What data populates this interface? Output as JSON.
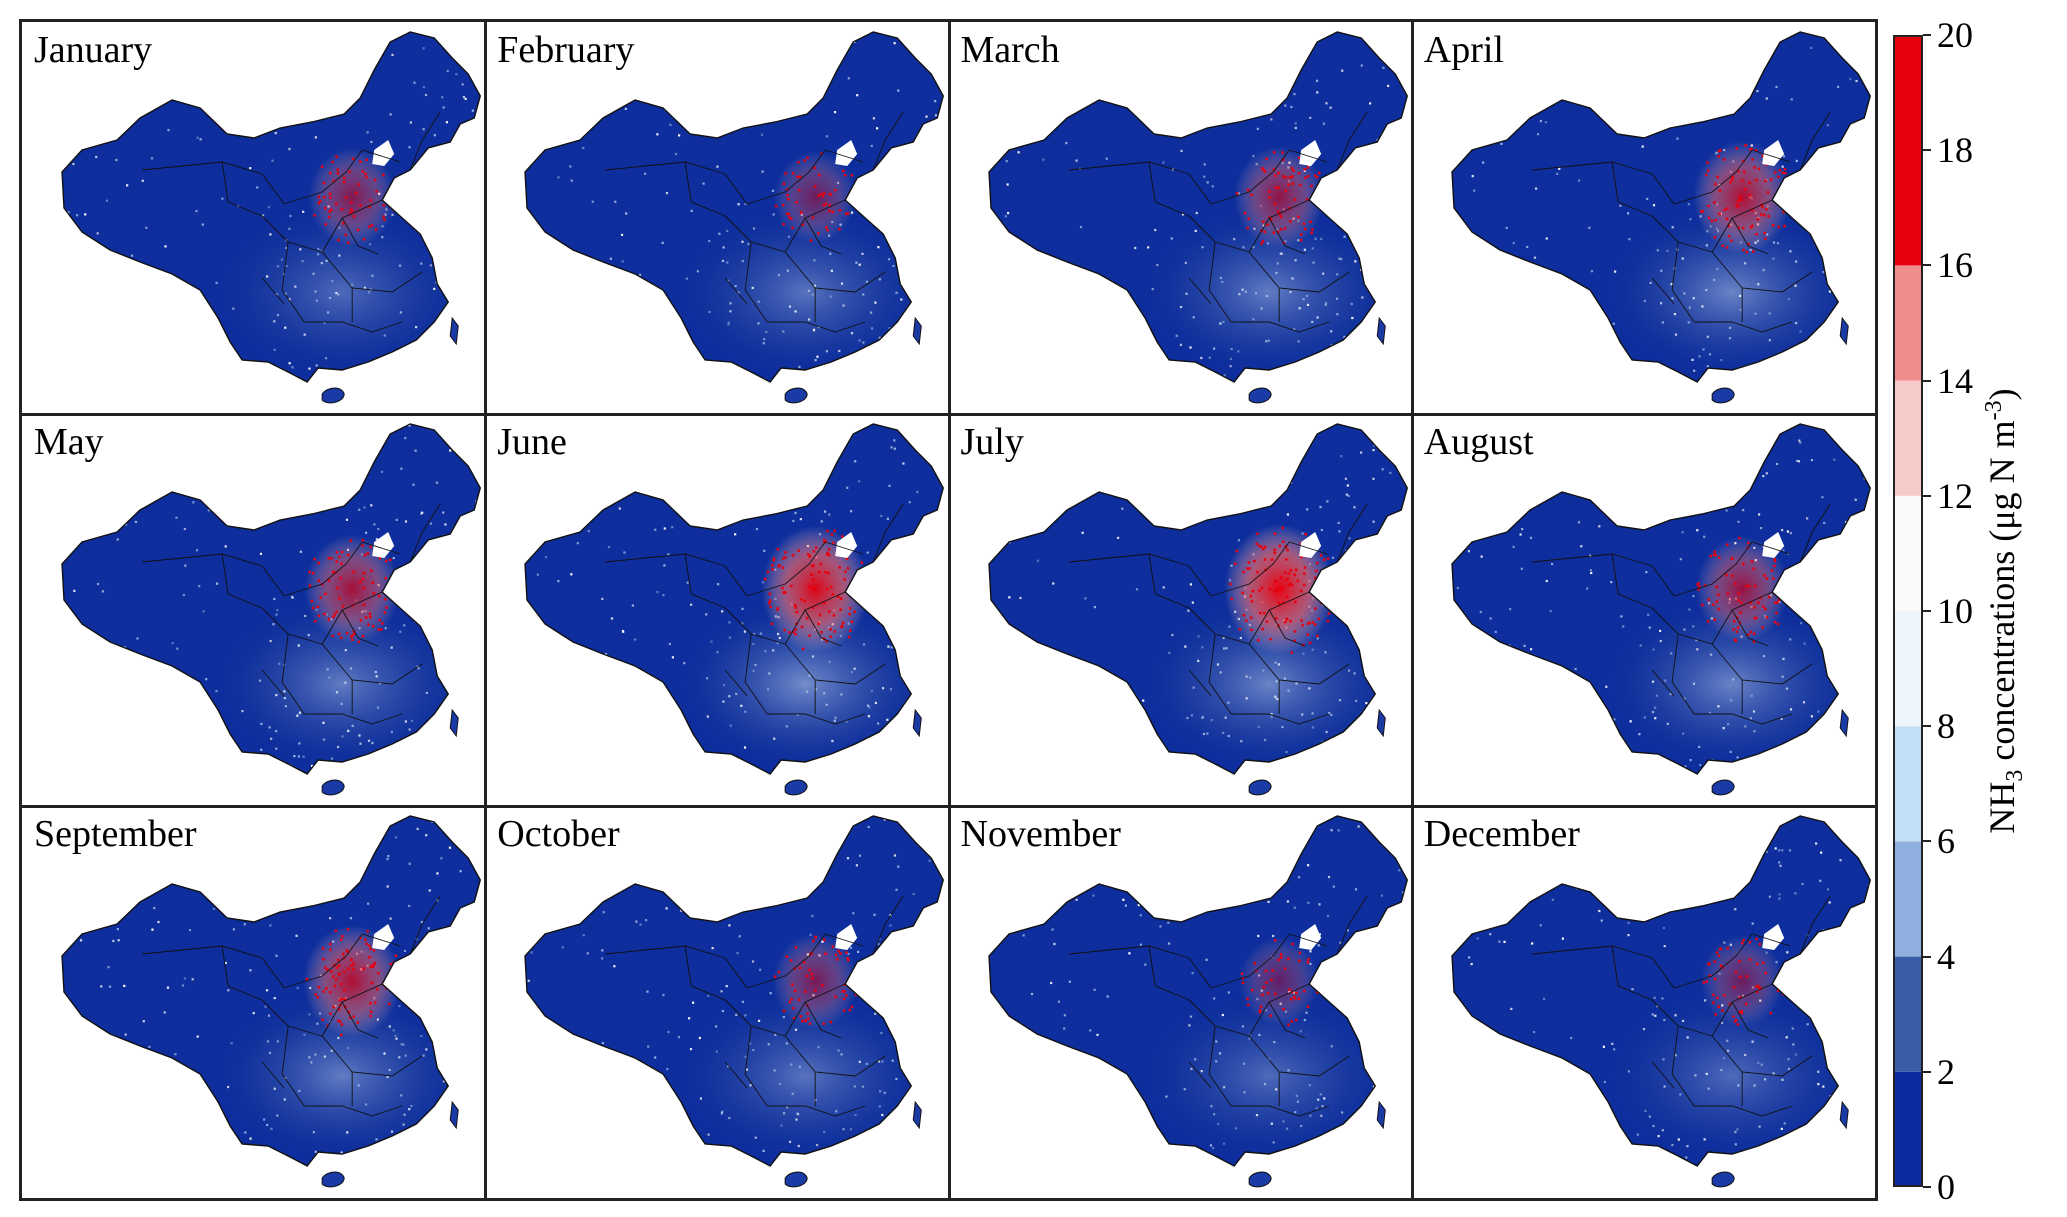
{
  "figure": {
    "panels": [
      {
        "month": "January",
        "hotspot": 0.55,
        "south": 0.35
      },
      {
        "month": "February",
        "hotspot": 0.45,
        "south": 0.4
      },
      {
        "month": "March",
        "hotspot": 0.6,
        "south": 0.45
      },
      {
        "month": "April",
        "hotspot": 0.75,
        "south": 0.5
      },
      {
        "month": "May",
        "hotspot": 0.7,
        "south": 0.45
      },
      {
        "month": "June",
        "hotspot": 0.95,
        "south": 0.55
      },
      {
        "month": "July",
        "hotspot": 1.0,
        "south": 0.5
      },
      {
        "month": "August",
        "hotspot": 0.65,
        "south": 0.5
      },
      {
        "month": "September",
        "hotspot": 0.75,
        "south": 0.45
      },
      {
        "month": "October",
        "hotspot": 0.5,
        "south": 0.4
      },
      {
        "month": "November",
        "hotspot": 0.4,
        "south": 0.35
      },
      {
        "month": "December",
        "hotspot": 0.45,
        "south": 0.35
      }
    ],
    "colorbar": {
      "title_main": "NH",
      "title_sub": "3",
      "title_rest": " concentrations (μg N m",
      "title_sup": "-3",
      "title_end": ")",
      "ticks": [
        "0",
        "2",
        "4",
        "6",
        "8",
        "10",
        "12",
        "14",
        "16",
        "18",
        "20"
      ],
      "min": 0,
      "max": 20,
      "bins": [
        {
          "from": 0,
          "to": 2,
          "color": "#0a2a9e"
        },
        {
          "from": 2,
          "to": 4,
          "color": "#3a5ca6"
        },
        {
          "from": 4,
          "to": 6,
          "color": "#8fb0de"
        },
        {
          "from": 6,
          "to": 8,
          "color": "#c4e0f6"
        },
        {
          "from": 8,
          "to": 10,
          "color": "#eef5fb"
        },
        {
          "from": 10,
          "to": 12,
          "color": "#fafafa"
        },
        {
          "from": 12,
          "to": 14,
          "color": "#f7caca"
        },
        {
          "from": 14,
          "to": 16,
          "color": "#ef8d8d"
        },
        {
          "from": 16,
          "to": 20,
          "color": "#e8000e"
        }
      ]
    }
  }
}
